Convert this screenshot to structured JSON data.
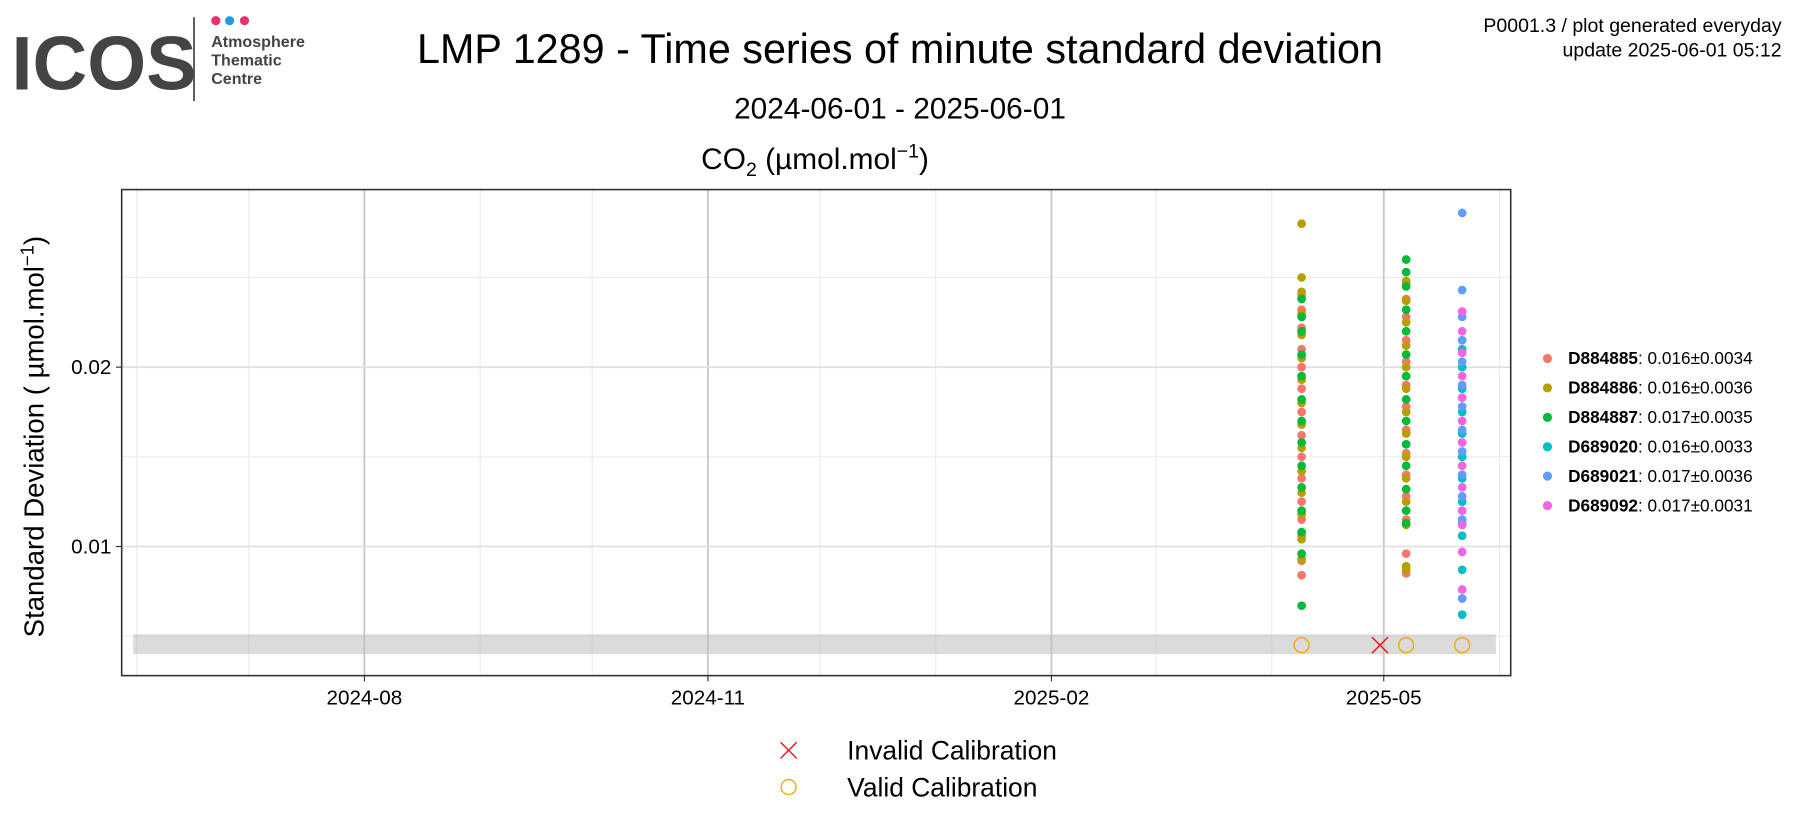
{
  "logo": {
    "name": "ICOS",
    "lines": [
      "Atmosphere",
      "Thematic",
      "Centre"
    ]
  },
  "notes": [
    "P0001.3 / plot generated everyday",
    "update  2025-06-01 05:12"
  ],
  "chart_data": {
    "type": "scatter",
    "title": "LMP 1289 - Time series of minute standard deviation",
    "subtitle": "2024-06-01 - 2025-06-01",
    "panel_title": {
      "base": "CO",
      "sub": "2",
      "unit": " (µmol.mol",
      "sup": "−1",
      "close": ")"
    },
    "y_label": {
      "text": "Standard Deviation ( µmol.mol",
      "sup": "−1",
      "close": ")"
    },
    "xlim": [
      "2024-05-28",
      "2025-06-04"
    ],
    "ylim": [
      0.0028,
      0.0299
    ],
    "xticks": [
      {
        "value": "2024-08-01",
        "label": "2024-08"
      },
      {
        "value": "2024-11-01",
        "label": "2024-11"
      },
      {
        "value": "2025-02-01",
        "label": "2025-02"
      },
      {
        "value": "2025-05-01",
        "label": "2025-05"
      }
    ],
    "x_minor_ticks": [
      "2024-06-01",
      "2024-07-01",
      "2024-09-01",
      "2024-10-01",
      "2024-12-01",
      "2025-01-01",
      "2025-03-01",
      "2025-04-01",
      "2025-06-01"
    ],
    "yticks": [
      0.01,
      0.02
    ],
    "y_minor_ticks": [
      0.005,
      0.015,
      0.025
    ],
    "grid": true,
    "reference_band": [
      0.004,
      0.0051
    ],
    "series": [
      {
        "name": "D884885",
        "summary": ": 0.016±0.0034",
        "color": "#F8766D",
        "x": [
          "2025-04-09",
          "2025-04-09",
          "2025-04-09",
          "2025-04-09",
          "2025-04-09",
          "2025-04-09",
          "2025-04-09",
          "2025-04-09",
          "2025-04-09",
          "2025-04-09",
          "2025-04-09",
          "2025-04-09",
          "2025-04-09",
          "2025-04-09",
          "2025-04-09",
          "2025-05-07",
          "2025-05-07",
          "2025-05-07",
          "2025-05-07",
          "2025-05-07",
          "2025-05-07",
          "2025-05-07",
          "2025-05-07",
          "2025-05-07",
          "2025-05-07",
          "2025-05-07",
          "2025-05-07",
          "2025-05-07",
          "2025-05-07"
        ],
        "values": [
          0.0084,
          0.0092,
          0.0106,
          0.0115,
          0.0125,
          0.0138,
          0.015,
          0.0162,
          0.0175,
          0.0188,
          0.02,
          0.021,
          0.0222,
          0.0232,
          0.024,
          0.0085,
          0.0096,
          0.0115,
          0.0128,
          0.014,
          0.0152,
          0.0165,
          0.0178,
          0.019,
          0.0203,
          0.0215,
          0.0228,
          0.0238,
          0.0247
        ]
      },
      {
        "name": "D884886",
        "summary": ": 0.016±0.0036",
        "color": "#B79F00",
        "x": [
          "2025-04-09",
          "2025-04-09",
          "2025-04-09",
          "2025-04-09",
          "2025-04-09",
          "2025-04-09",
          "2025-04-09",
          "2025-04-09",
          "2025-04-09",
          "2025-04-09",
          "2025-04-09",
          "2025-04-09",
          "2025-04-09",
          "2025-04-09",
          "2025-04-09",
          "2025-05-07",
          "2025-05-07",
          "2025-05-07",
          "2025-05-07",
          "2025-05-07",
          "2025-05-07",
          "2025-05-07",
          "2025-05-07",
          "2025-05-07",
          "2025-05-07",
          "2025-05-07",
          "2025-05-07",
          "2025-05-07",
          "2025-05-07"
        ],
        "values": [
          0.0093,
          0.0104,
          0.0118,
          0.013,
          0.0142,
          0.0155,
          0.0168,
          0.018,
          0.0193,
          0.0205,
          0.0218,
          0.023,
          0.0242,
          0.025,
          0.028,
          0.0087,
          0.0089,
          0.0112,
          0.0125,
          0.0138,
          0.015,
          0.0163,
          0.0175,
          0.0188,
          0.02,
          0.0212,
          0.0225,
          0.0237,
          0.0248
        ]
      },
      {
        "name": "D884887",
        "summary": ": 0.017±0.0035",
        "color": "#00BA38",
        "x": [
          "2025-04-09",
          "2025-04-09",
          "2025-04-09",
          "2025-04-09",
          "2025-04-09",
          "2025-04-09",
          "2025-04-09",
          "2025-04-09",
          "2025-04-09",
          "2025-04-09",
          "2025-04-09",
          "2025-04-09",
          "2025-04-09",
          "2025-04-09",
          "2025-05-07",
          "2025-05-07",
          "2025-05-07",
          "2025-05-07",
          "2025-05-07",
          "2025-05-07",
          "2025-05-07",
          "2025-05-07",
          "2025-05-07",
          "2025-05-07",
          "2025-05-07",
          "2025-05-07",
          "2025-05-07",
          "2025-05-07"
        ],
        "values": [
          0.0067,
          0.0096,
          0.0108,
          0.012,
          0.0133,
          0.0145,
          0.0158,
          0.017,
          0.0182,
          0.0195,
          0.0207,
          0.022,
          0.0228,
          0.0238,
          0.0113,
          0.012,
          0.0132,
          0.0145,
          0.0157,
          0.017,
          0.0182,
          0.0195,
          0.0207,
          0.022,
          0.0232,
          0.0245,
          0.0253,
          0.026
        ]
      },
      {
        "name": "D689020",
        "summary": ": 0.016±0.0033",
        "color": "#00BFC4",
        "x": [
          "2025-05-22",
          "2025-05-22",
          "2025-05-22",
          "2025-05-22",
          "2025-05-22",
          "2025-05-22",
          "2025-05-22",
          "2025-05-22",
          "2025-05-22",
          "2025-05-22",
          "2025-05-22",
          "2025-05-22"
        ],
        "values": [
          0.0062,
          0.0087,
          0.0106,
          0.0113,
          0.0125,
          0.0138,
          0.015,
          0.0163,
          0.0175,
          0.0188,
          0.02,
          0.021
        ]
      },
      {
        "name": "D689021",
        "summary": ": 0.017±0.0036",
        "color": "#619CFF",
        "x": [
          "2025-05-22",
          "2025-05-22",
          "2025-05-22",
          "2025-05-22",
          "2025-05-22",
          "2025-05-22",
          "2025-05-22",
          "2025-05-22",
          "2025-05-22",
          "2025-05-22",
          "2025-05-22",
          "2025-05-22",
          "2025-05-22"
        ],
        "values": [
          0.0071,
          0.0115,
          0.0128,
          0.014,
          0.0153,
          0.0165,
          0.0178,
          0.019,
          0.0203,
          0.0215,
          0.0228,
          0.0243,
          0.0286
        ]
      },
      {
        "name": "D689092",
        "summary": ": 0.017±0.0031",
        "color": "#F564E3",
        "x": [
          "2025-05-22",
          "2025-05-22",
          "2025-05-22",
          "2025-05-22",
          "2025-05-22",
          "2025-05-22",
          "2025-05-22",
          "2025-05-22",
          "2025-05-22",
          "2025-05-22",
          "2025-05-22",
          "2025-05-22",
          "2025-05-22"
        ],
        "values": [
          0.0076,
          0.0097,
          0.0112,
          0.012,
          0.0133,
          0.0145,
          0.0158,
          0.017,
          0.0183,
          0.0195,
          0.0208,
          0.022,
          0.0231
        ]
      }
    ],
    "calibrations": [
      {
        "name": "Invalid Calibration",
        "symbol": "cross",
        "color": "#E41A1C",
        "x": [
          "2025-04-30"
        ],
        "values": [
          0.0045
        ]
      },
      {
        "name": "Valid Calibration",
        "symbol": "circle",
        "color": "#F5A800",
        "x": [
          "2025-04-09",
          "2025-05-07",
          "2025-05-22"
        ],
        "values": [
          0.0045,
          0.0045,
          0.0045
        ]
      }
    ]
  }
}
